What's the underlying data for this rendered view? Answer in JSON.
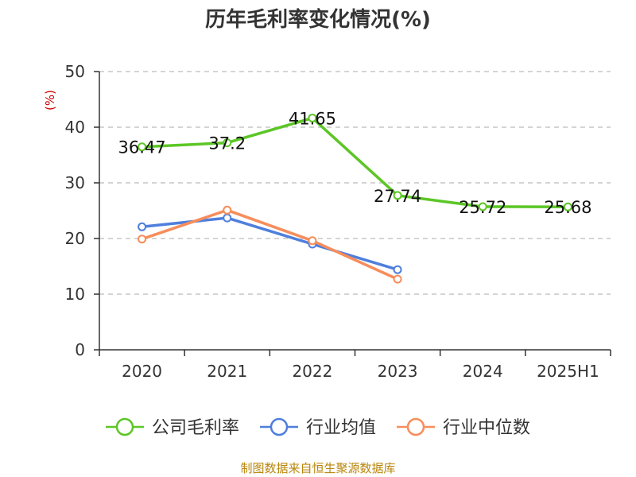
{
  "chart_data": {
    "type": "line",
    "title": "历年毛利率变化情况(%)",
    "ylabel": "(%)",
    "xlabel": "",
    "categories": [
      "2020",
      "2021",
      "2022",
      "2023",
      "2024",
      "2025H1"
    ],
    "ylim": [
      0,
      50
    ],
    "yticks": [
      0,
      10,
      20,
      30,
      40,
      50
    ],
    "grid": true,
    "legend_position": "bottom",
    "series": [
      {
        "name": "公司毛利率",
        "color": "#5cc626",
        "values": [
          36.47,
          37.2,
          41.65,
          27.74,
          25.72,
          25.68
        ],
        "show_labels": true
      },
      {
        "name": "行业均值",
        "color": "#4f7fdc",
        "values": [
          22.1,
          23.7,
          19.0,
          14.4,
          null,
          null
        ],
        "show_labels": false
      },
      {
        "name": "行业中位数",
        "color": "#f78d5b",
        "values": [
          19.9,
          25.1,
          19.6,
          12.7,
          null,
          null
        ],
        "show_labels": false
      }
    ]
  },
  "source_text": "制图数据来自恒生聚源数据库"
}
